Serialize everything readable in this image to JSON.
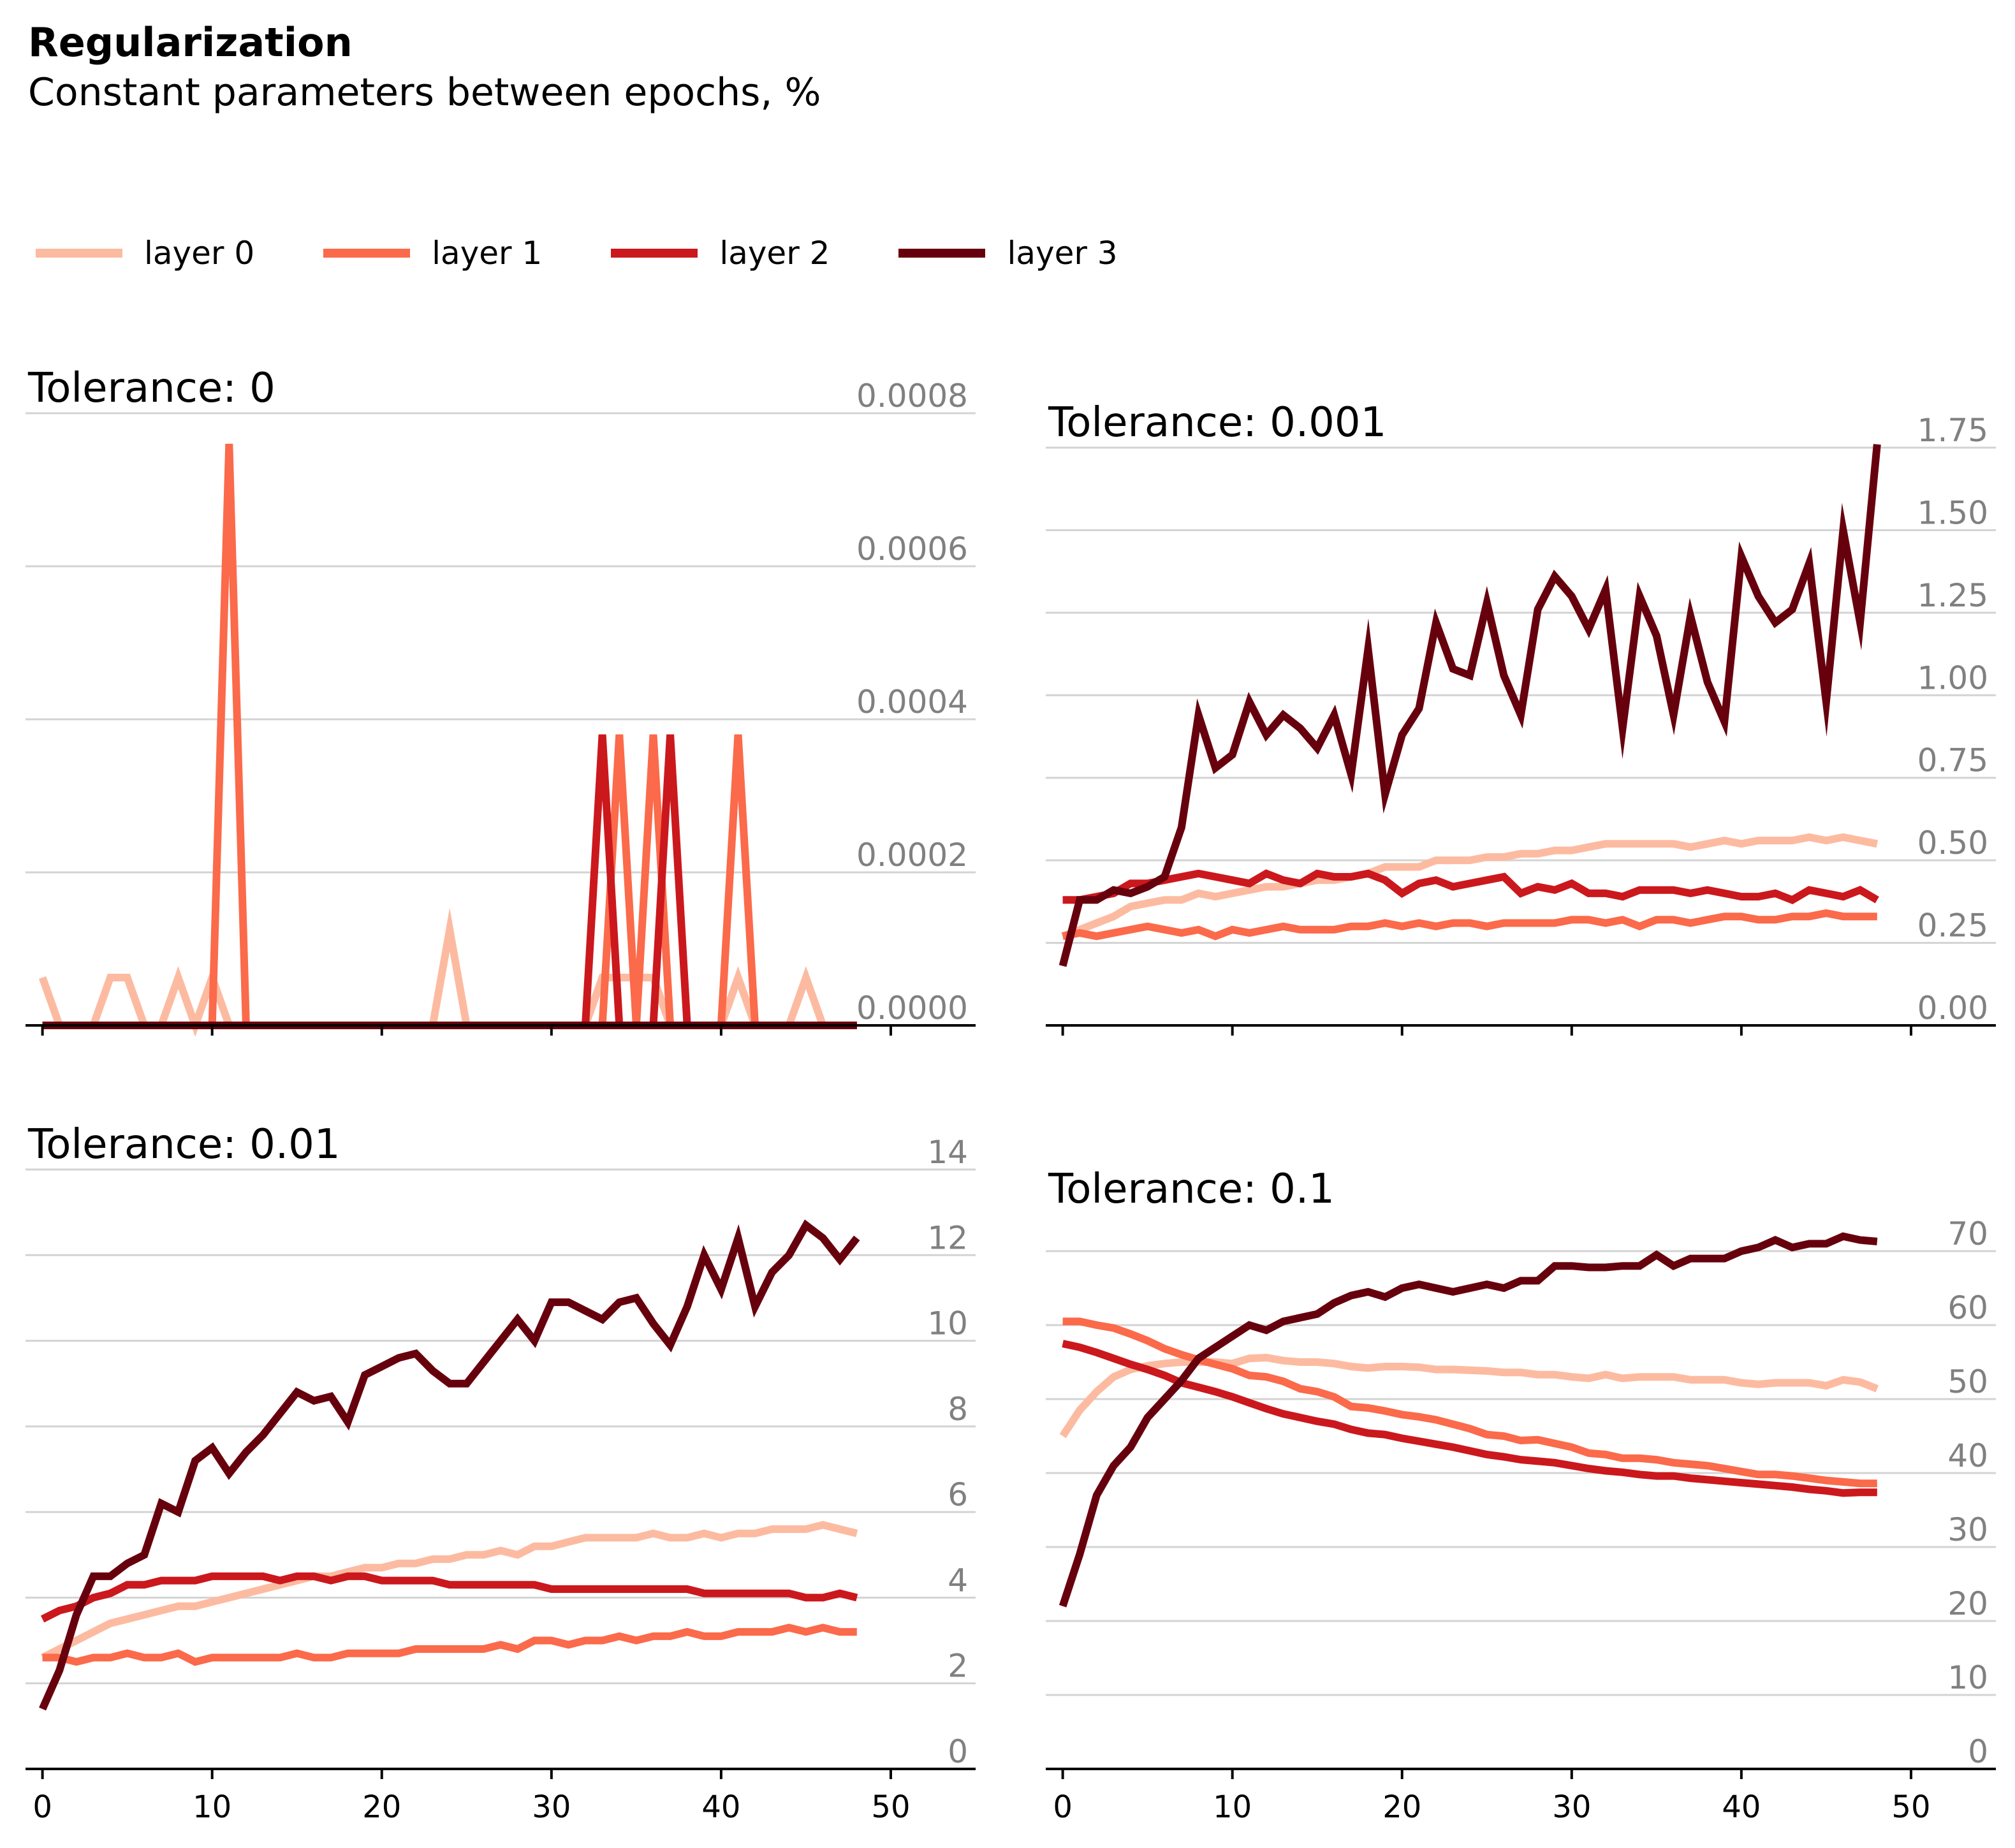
{
  "chart_title": "Regularization",
  "chart_subtitle": "Constant parameters between epochs, %",
  "legend": [
    {
      "label": "layer 0",
      "color": "#fcbba1"
    },
    {
      "label": "layer 1",
      "color": "#fb6a4a"
    },
    {
      "label": "layer 2",
      "color": "#cb181d"
    },
    {
      "label": "layer 3",
      "color": "#67000d"
    }
  ],
  "chart_data": [
    {
      "type": "line",
      "title": "Tolerance: 0",
      "xlim": [
        -1,
        55
      ],
      "ylim": [
        0,
        0.0008
      ],
      "xticks": [
        0,
        10,
        20,
        30,
        40,
        50
      ],
      "yticks": [
        0.0,
        0.0002,
        0.0004,
        0.0006,
        0.0008
      ],
      "ytick_labels": [
        "0.0000",
        "0.0002",
        "0.0004",
        "0.0006",
        "0.0008"
      ],
      "grid": true,
      "series": [
        {
          "name": "layer 0",
          "color": "#fcbba1",
          "values": [
            6.25e-05,
            0,
            0,
            0,
            6.25e-05,
            6.25e-05,
            0,
            0,
            6.25e-05,
            0,
            6.25e-05,
            0,
            0,
            0,
            0,
            0,
            0,
            0,
            0,
            0,
            0,
            0,
            0,
            0,
            0.000125,
            0,
            0,
            0,
            0,
            0,
            0,
            0,
            0,
            6.25e-05,
            6.25e-05,
            6.25e-05,
            6.25e-05,
            0,
            0,
            0,
            0,
            6.25e-05,
            0,
            0,
            0,
            6.25e-05,
            0,
            0,
            0
          ]
        },
        {
          "name": "layer 1",
          "color": "#fb6a4a",
          "values": [
            0,
            0,
            0,
            0,
            0,
            0,
            0,
            0,
            0,
            0,
            0,
            0.00076,
            0,
            0,
            0,
            0,
            0,
            0,
            0,
            0,
            0,
            0,
            0,
            0,
            0,
            0,
            0,
            0,
            0,
            0,
            0,
            0,
            0,
            0,
            0.00038,
            0,
            0.00038,
            0,
            0,
            0,
            0,
            0.00038,
            0,
            0,
            0,
            0,
            0,
            0,
            0
          ]
        },
        {
          "name": "layer 2",
          "color": "#cb181d",
          "values": [
            0,
            0,
            0,
            0,
            0,
            0,
            0,
            0,
            0,
            0,
            0,
            0,
            0,
            0,
            0,
            0,
            0,
            0,
            0,
            0,
            0,
            0,
            0,
            0,
            0,
            0,
            0,
            0,
            0,
            0,
            0,
            0,
            0,
            0.00038,
            0,
            0,
            0,
            0.00038,
            0,
            0,
            0,
            0,
            0,
            0,
            0,
            0,
            0,
            0,
            0
          ]
        },
        {
          "name": "layer 3",
          "color": "#67000d",
          "values": [
            0,
            0,
            0,
            0,
            0,
            0,
            0,
            0,
            0,
            0,
            0,
            0,
            0,
            0,
            0,
            0,
            0,
            0,
            0,
            0,
            0,
            0,
            0,
            0,
            0,
            0,
            0,
            0,
            0,
            0,
            0,
            0,
            0,
            0,
            0,
            0,
            0,
            0,
            0,
            0,
            0,
            0,
            0,
            0,
            0,
            0,
            0,
            0,
            0
          ]
        }
      ]
    },
    {
      "type": "line",
      "title": "Tolerance: 0.001",
      "xlim": [
        -1,
        55
      ],
      "ylim": [
        0,
        1.75
      ],
      "xticks": [
        0,
        10,
        20,
        30,
        40,
        50
      ],
      "yticks": [
        0.0,
        0.25,
        0.5,
        0.75,
        1.0,
        1.25,
        1.5,
        1.75
      ],
      "ytick_labels": [
        "0.00",
        "0.25",
        "0.50",
        "0.75",
        "1.00",
        "1.25",
        "1.50",
        "1.75"
      ],
      "grid": true,
      "series": [
        {
          "name": "layer 0",
          "color": "#fcbba1",
          "values": [
            0.27,
            0.29,
            0.31,
            0.33,
            0.36,
            0.37,
            0.38,
            0.38,
            0.4,
            0.39,
            0.4,
            0.41,
            0.42,
            0.42,
            0.43,
            0.44,
            0.44,
            0.45,
            0.46,
            0.48,
            0.48,
            0.48,
            0.5,
            0.5,
            0.5,
            0.51,
            0.51,
            0.52,
            0.52,
            0.53,
            0.53,
            0.54,
            0.55,
            0.55,
            0.55,
            0.55,
            0.55,
            0.54,
            0.55,
            0.56,
            0.55,
            0.56,
            0.56,
            0.56,
            0.57,
            0.56,
            0.57,
            0.56,
            0.55
          ]
        },
        {
          "name": "layer 1",
          "color": "#fb6a4a",
          "values": [
            0.27,
            0.28,
            0.27,
            0.28,
            0.29,
            0.3,
            0.29,
            0.28,
            0.29,
            0.27,
            0.29,
            0.28,
            0.29,
            0.3,
            0.29,
            0.29,
            0.29,
            0.3,
            0.3,
            0.31,
            0.3,
            0.31,
            0.3,
            0.31,
            0.31,
            0.3,
            0.31,
            0.31,
            0.31,
            0.31,
            0.32,
            0.32,
            0.31,
            0.32,
            0.3,
            0.32,
            0.32,
            0.31,
            0.32,
            0.33,
            0.33,
            0.32,
            0.32,
            0.33,
            0.33,
            0.34,
            0.33,
            0.33,
            0.33
          ]
        },
        {
          "name": "layer 2",
          "color": "#cb181d",
          "values": [
            0.38,
            0.38,
            0.39,
            0.4,
            0.43,
            0.43,
            0.44,
            0.45,
            0.46,
            0.45,
            0.44,
            0.43,
            0.46,
            0.44,
            0.43,
            0.46,
            0.45,
            0.45,
            0.46,
            0.44,
            0.4,
            0.43,
            0.44,
            0.42,
            0.43,
            0.44,
            0.45,
            0.4,
            0.42,
            0.41,
            0.43,
            0.4,
            0.4,
            0.39,
            0.41,
            0.41,
            0.41,
            0.4,
            0.41,
            0.4,
            0.39,
            0.39,
            0.4,
            0.38,
            0.41,
            0.4,
            0.39,
            0.41,
            0.38
          ]
        },
        {
          "name": "layer 3",
          "color": "#67000d",
          "values": [
            0.18,
            0.38,
            0.38,
            0.41,
            0.4,
            0.42,
            0.45,
            0.6,
            0.94,
            0.78,
            0.82,
            0.98,
            0.88,
            0.94,
            0.9,
            0.84,
            0.94,
            0.76,
            1.14,
            0.7,
            0.88,
            0.96,
            1.22,
            1.08,
            1.06,
            1.28,
            1.06,
            0.94,
            1.26,
            1.36,
            1.3,
            1.2,
            1.32,
            0.9,
            1.3,
            1.18,
            0.94,
            1.24,
            1.04,
            0.92,
            1.42,
            1.3,
            1.22,
            1.26,
            1.4,
            0.98,
            1.5,
            1.22,
            1.76
          ]
        }
      ]
    },
    {
      "type": "line",
      "title": "Tolerance: 0.01",
      "xlim": [
        -1,
        55
      ],
      "ylim": [
        0,
        14
      ],
      "xticks": [
        0,
        10,
        20,
        30,
        40,
        50
      ],
      "yticks": [
        0,
        2,
        4,
        6,
        8,
        10,
        12,
        14
      ],
      "ytick_labels": [
        "0",
        "2",
        "4",
        "6",
        "8",
        "10",
        "12",
        "14"
      ],
      "grid": true,
      "series": [
        {
          "name": "layer 0",
          "color": "#fcbba1",
          "values": [
            2.6,
            2.8,
            3.0,
            3.2,
            3.4,
            3.5,
            3.6,
            3.7,
            3.8,
            3.8,
            3.9,
            4.0,
            4.1,
            4.2,
            4.3,
            4.4,
            4.5,
            4.5,
            4.6,
            4.7,
            4.7,
            4.8,
            4.8,
            4.9,
            4.9,
            5.0,
            5.0,
            5.1,
            5.0,
            5.2,
            5.2,
            5.3,
            5.4,
            5.4,
            5.4,
            5.4,
            5.5,
            5.4,
            5.4,
            5.5,
            5.4,
            5.5,
            5.5,
            5.6,
            5.6,
            5.6,
            5.7,
            5.6,
            5.5
          ]
        },
        {
          "name": "layer 1",
          "color": "#fb6a4a",
          "values": [
            2.6,
            2.6,
            2.5,
            2.6,
            2.6,
            2.7,
            2.6,
            2.6,
            2.7,
            2.5,
            2.6,
            2.6,
            2.6,
            2.6,
            2.6,
            2.7,
            2.6,
            2.6,
            2.7,
            2.7,
            2.7,
            2.7,
            2.8,
            2.8,
            2.8,
            2.8,
            2.8,
            2.9,
            2.8,
            3.0,
            3.0,
            2.9,
            3.0,
            3.0,
            3.1,
            3.0,
            3.1,
            3.1,
            3.2,
            3.1,
            3.1,
            3.2,
            3.2,
            3.2,
            3.3,
            3.2,
            3.3,
            3.2,
            3.2
          ]
        },
        {
          "name": "layer 2",
          "color": "#cb181d",
          "values": [
            3.5,
            3.7,
            3.8,
            4.0,
            4.1,
            4.3,
            4.3,
            4.4,
            4.4,
            4.4,
            4.5,
            4.5,
            4.5,
            4.5,
            4.4,
            4.5,
            4.5,
            4.4,
            4.5,
            4.5,
            4.4,
            4.4,
            4.4,
            4.4,
            4.3,
            4.3,
            4.3,
            4.3,
            4.3,
            4.3,
            4.2,
            4.2,
            4.2,
            4.2,
            4.2,
            4.2,
            4.2,
            4.2,
            4.2,
            4.1,
            4.1,
            4.1,
            4.1,
            4.1,
            4.1,
            4.0,
            4.0,
            4.1,
            4.0
          ]
        },
        {
          "name": "layer 3",
          "color": "#67000d",
          "values": [
            1.4,
            2.3,
            3.6,
            4.5,
            4.5,
            4.8,
            5.0,
            6.2,
            6.0,
            7.2,
            7.5,
            6.9,
            7.4,
            7.8,
            8.3,
            8.8,
            8.6,
            8.7,
            8.1,
            9.2,
            9.4,
            9.6,
            9.7,
            9.3,
            9.0,
            9.0,
            9.5,
            10.0,
            10.5,
            10.0,
            10.9,
            10.9,
            10.7,
            10.5,
            10.9,
            11.0,
            10.4,
            9.9,
            10.8,
            12.0,
            11.2,
            12.4,
            10.8,
            11.6,
            12.0,
            12.7,
            12.4,
            11.9,
            12.4
          ]
        }
      ]
    },
    {
      "type": "line",
      "title": "Tolerance: 0.1",
      "xlim": [
        -1,
        55
      ],
      "ylim": [
        0,
        75
      ],
      "xticks": [
        0,
        10,
        20,
        30,
        40,
        50
      ],
      "yticks": [
        0,
        10,
        20,
        30,
        40,
        50,
        60,
        70
      ],
      "ytick_labels": [
        "0",
        "10",
        "20",
        "30",
        "40",
        "50",
        "60",
        "70"
      ],
      "grid": true,
      "series": [
        {
          "name": "layer 0",
          "color": "#fcbba1",
          "values": [
            45,
            48.5,
            51,
            53,
            54,
            54.5,
            54.8,
            55,
            55,
            55,
            54.8,
            55.5,
            55.6,
            55.2,
            55,
            55,
            54.8,
            54.4,
            54.2,
            54.4,
            54.4,
            54.3,
            54,
            54,
            53.9,
            53.8,
            53.6,
            53.6,
            53.3,
            53.3,
            53,
            52.8,
            53.3,
            52.8,
            53,
            53,
            53,
            52.6,
            52.6,
            52.6,
            52.2,
            52,
            52.2,
            52.2,
            52.2,
            51.8,
            52.6,
            52.3,
            51.4
          ]
        },
        {
          "name": "layer 1",
          "color": "#fb6a4a",
          "values": [
            60.5,
            60.5,
            60,
            59.6,
            58.8,
            57.9,
            56.8,
            56,
            55.3,
            54.7,
            54.1,
            53.2,
            53,
            52.4,
            51.4,
            51,
            50.3,
            49,
            48.8,
            48.4,
            47.9,
            47.6,
            47.2,
            46.6,
            46,
            45.2,
            45,
            44.4,
            44.5,
            44,
            43.5,
            42.7,
            42.5,
            42,
            42,
            41.8,
            41.4,
            41.2,
            41,
            40.6,
            40.2,
            39.8,
            39.8,
            39.6,
            39.3,
            39,
            38.8,
            38.6,
            38.6
          ]
        },
        {
          "name": "layer 2",
          "color": "#cb181d",
          "values": [
            57.5,
            57,
            56.3,
            55.5,
            54.7,
            54,
            53.2,
            52.2,
            51.6,
            51,
            50.3,
            49.5,
            48.7,
            48,
            47.5,
            47,
            46.6,
            45.9,
            45.4,
            45.2,
            44.7,
            44.3,
            43.9,
            43.5,
            43,
            42.5,
            42.2,
            41.8,
            41.6,
            41.4,
            41,
            40.6,
            40.3,
            40.1,
            39.8,
            39.6,
            39.6,
            39.3,
            39.1,
            38.9,
            38.7,
            38.5,
            38.3,
            38.1,
            37.8,
            37.6,
            37.3,
            37.4,
            37.4
          ]
        },
        {
          "name": "layer 3",
          "color": "#67000d",
          "values": [
            22,
            29,
            37,
            41,
            43.5,
            47.5,
            50,
            52.5,
            55.5,
            57,
            58.5,
            60,
            59.3,
            60.5,
            61,
            61.5,
            63,
            64,
            64.5,
            63.8,
            65,
            65.5,
            65,
            64.5,
            65,
            65.5,
            65,
            66,
            66,
            68,
            68,
            67.8,
            67.8,
            68,
            68,
            69.5,
            68,
            69,
            69,
            69,
            70,
            70.5,
            71.5,
            70.5,
            71,
            71,
            72,
            71.5,
            71.3
          ]
        }
      ]
    }
  ]
}
